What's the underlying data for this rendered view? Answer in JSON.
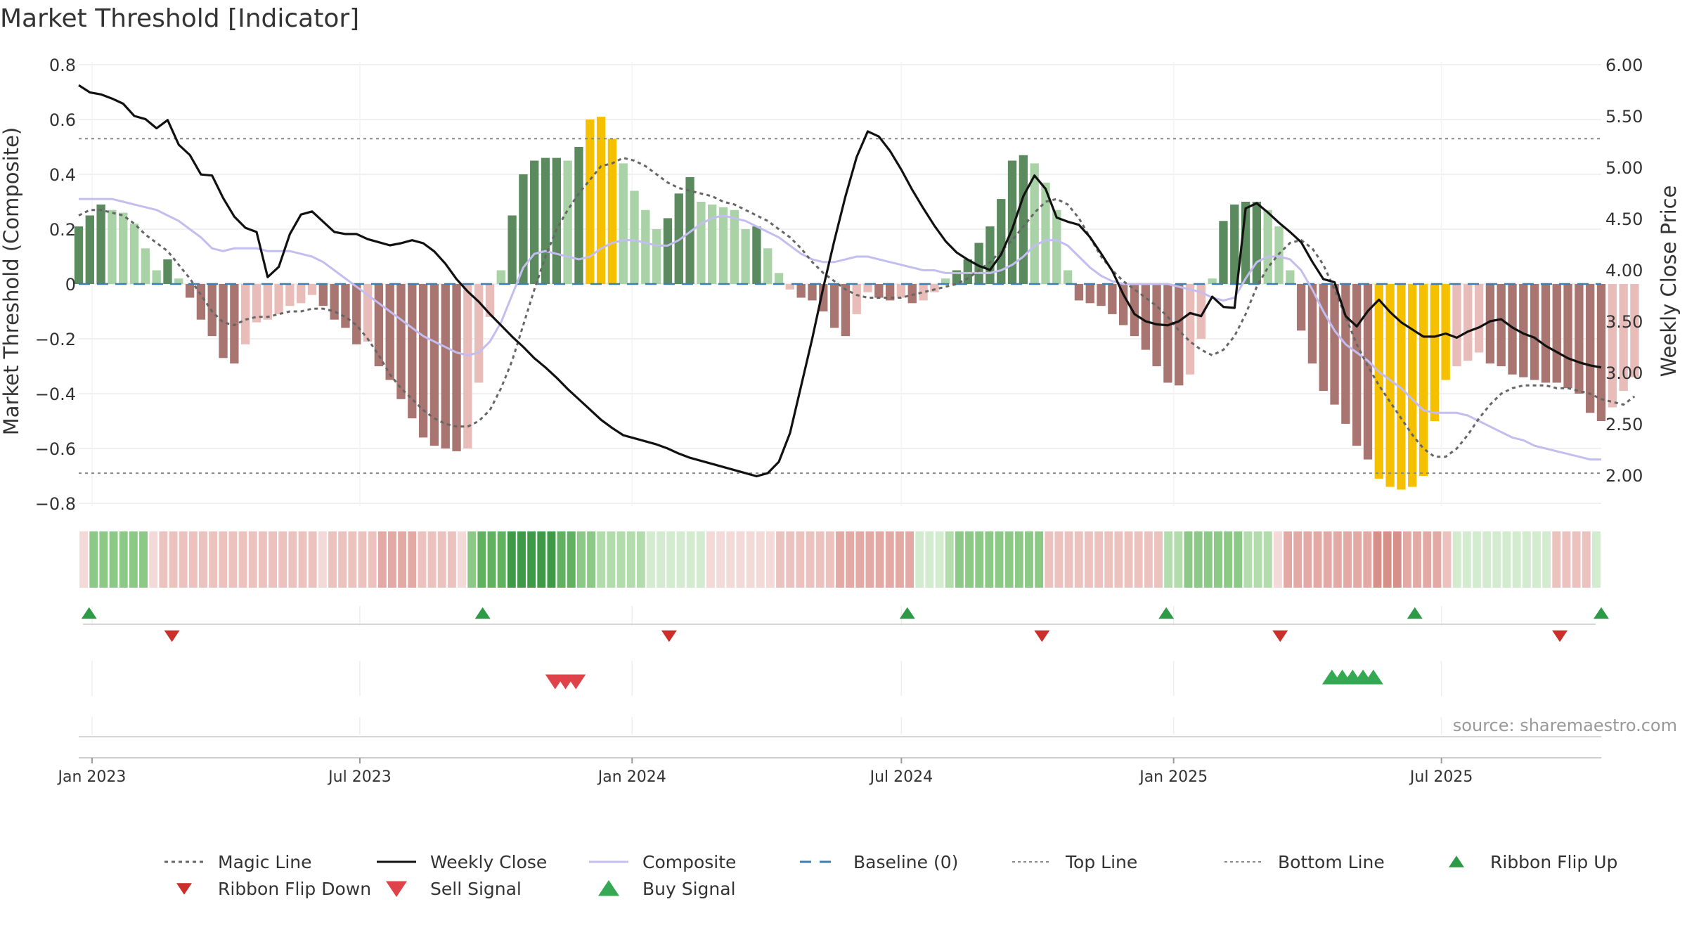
{
  "chart_data": {
    "type": "bar",
    "title": "Market Threshold [Indicator]",
    "ylabel": "Market Threshold (Composite)",
    "y2label": "Weekly Close Price",
    "ylim": [
      -0.85,
      0.85
    ],
    "y2lim": [
      1.72,
      6.0
    ],
    "yticks": [
      0.8,
      0.6,
      0.4,
      0.2,
      0,
      -0.2,
      -0.4,
      -0.6,
      -0.8
    ],
    "ytick_labels": [
      "0.8",
      "0.6",
      "0.4",
      "0.2",
      "0",
      "−0.2",
      "−0.4",
      "−0.6",
      "−0.8"
    ],
    "y2ticks": [
      6.0,
      5.5,
      5.0,
      4.5,
      4.0,
      3.5,
      3.0,
      2.5,
      2.0
    ],
    "y2tick_labels": [
      "6.00",
      "5.50",
      "5.00",
      "4.50",
      "4.00",
      "3.50",
      "3.00",
      "2.50",
      "2.00"
    ],
    "x_start": "2022-12-23",
    "x_end": "2025-10-17",
    "x_ticks": [
      {
        "date": "2023-01-01",
        "label": "Jan 2023"
      },
      {
        "date": "2023-07-01",
        "label": "Jul 2023"
      },
      {
        "date": "2024-01-01",
        "label": "Jan 2024"
      },
      {
        "date": "2024-07-01",
        "label": "Jul 2024"
      },
      {
        "date": "2025-01-01",
        "label": "Jan 2025"
      },
      {
        "date": "2025-07-01",
        "label": "Jul 2025"
      }
    ],
    "top_line": 0.53,
    "bottom_line": -0.69,
    "grid": true,
    "legend_position": "bottom",
    "bar_colors": {
      "pos_dark": "#5b8a5e",
      "pos_light": "#a9d3a6",
      "neg_dark": "#a97570",
      "neg_light": "#e8bcb9",
      "extreme": "#f5c000"
    },
    "ribbon_colors": {
      "bull": [
        "#d3eccf",
        "#b2dcac",
        "#8cc886",
        "#62b161",
        "#3e9a46"
      ],
      "bear": [
        "#f3d9d7",
        "#ecc2bf",
        "#e3a9a5",
        "#d78f8a",
        "#c9716b"
      ]
    },
    "weeks": {
      "composite": [
        0.31,
        0.31,
        0.31,
        0.31,
        0.3,
        0.29,
        0.28,
        0.27,
        0.25,
        0.23,
        0.2,
        0.17,
        0.13,
        0.12,
        0.13,
        0.13,
        0.13,
        0.12,
        0.12,
        0.12,
        0.11,
        0.1,
        0.08,
        0.05,
        0.02,
        -0.01,
        -0.04,
        -0.07,
        -0.1,
        -0.13,
        -0.16,
        -0.19,
        -0.21,
        -0.23,
        -0.25,
        -0.26,
        -0.25,
        -0.21,
        -0.14,
        -0.04,
        0.06,
        0.11,
        0.12,
        0.11,
        0.1,
        0.09,
        0.1,
        0.13,
        0.15,
        0.16,
        0.16,
        0.15,
        0.14,
        0.14,
        0.16,
        0.19,
        0.22,
        0.24,
        0.25,
        0.24,
        0.23,
        0.21,
        0.19,
        0.17,
        0.14,
        0.11,
        0.09,
        0.08,
        0.08,
        0.09,
        0.1,
        0.1,
        0.09,
        0.08,
        0.07,
        0.06,
        0.05,
        0.05,
        0.04,
        0.04,
        0.04,
        0.04,
        0.04,
        0.05,
        0.07,
        0.1,
        0.14,
        0.16,
        0.16,
        0.14,
        0.1,
        0.06,
        0.03,
        0.01,
        0.0,
        0.0,
        0.0,
        0.0,
        0.0,
        -0.01,
        -0.02,
        -0.03,
        -0.05,
        -0.06,
        -0.05,
        0.02,
        0.08,
        0.1,
        0.1,
        0.09,
        0.05,
        -0.02,
        -0.1,
        -0.17,
        -0.22,
        -0.25,
        -0.28,
        -0.32,
        -0.35,
        -0.38,
        -0.42,
        -0.46,
        -0.47,
        -0.47,
        -0.47,
        -0.48,
        -0.5,
        -0.52,
        -0.54,
        -0.56,
        -0.57,
        -0.59,
        -0.6,
        -0.61,
        -0.62,
        -0.63,
        -0.64,
        -0.64
      ],
      "close": [
        5.8,
        5.73,
        5.71,
        5.67,
        5.62,
        5.5,
        5.47,
        5.38,
        5.46,
        5.22,
        5.12,
        4.93,
        4.92,
        4.7,
        4.52,
        4.41,
        4.37,
        3.93,
        4.03,
        4.35,
        4.54,
        4.57,
        4.47,
        4.37,
        4.35,
        4.35,
        4.3,
        4.27,
        4.24,
        4.26,
        4.29,
        4.26,
        4.18,
        4.06,
        3.91,
        3.79,
        3.69,
        3.57,
        3.46,
        3.35,
        3.25,
        3.14,
        3.05,
        2.95,
        2.84,
        2.74,
        2.64,
        2.54,
        2.46,
        2.39,
        2.36,
        2.33,
        2.3,
        2.26,
        2.21,
        2.17,
        2.14,
        2.11,
        2.08,
        2.05,
        2.02,
        1.99,
        2.02,
        2.13,
        2.41,
        2.87,
        3.33,
        3.83,
        4.29,
        4.72,
        5.1,
        5.35,
        5.3,
        5.16,
        4.98,
        4.78,
        4.6,
        4.43,
        4.28,
        4.17,
        4.1,
        4.04,
        4.0,
        4.15,
        4.4,
        4.72,
        4.92,
        4.79,
        4.51,
        4.47,
        4.44,
        4.32,
        4.16,
        3.99,
        3.76,
        3.57,
        3.5,
        3.47,
        3.46,
        3.5,
        3.58,
        3.55,
        3.74,
        3.64,
        3.63,
        4.6,
        4.65,
        4.56,
        4.46,
        4.37,
        4.27,
        4.08,
        3.91,
        3.88,
        3.55,
        3.45,
        3.6,
        3.71,
        3.59,
        3.49,
        3.42,
        3.35,
        3.35,
        3.38,
        3.34,
        3.4,
        3.44,
        3.5,
        3.52,
        3.44,
        3.38,
        3.34,
        3.26,
        3.2,
        3.14,
        3.1,
        3.07,
        3.05
      ],
      "magic": [
        0.25,
        0.27,
        0.27,
        0.26,
        0.25,
        0.22,
        0.18,
        0.15,
        0.12,
        0.07,
        0.02,
        -0.04,
        -0.1,
        -0.14,
        -0.15,
        -0.13,
        -0.12,
        -0.12,
        -0.11,
        -0.1,
        -0.1,
        -0.09,
        -0.09,
        -0.1,
        -0.12,
        -0.15,
        -0.2,
        -0.26,
        -0.33,
        -0.38,
        -0.42,
        -0.46,
        -0.49,
        -0.51,
        -0.52,
        -0.52,
        -0.5,
        -0.46,
        -0.38,
        -0.28,
        -0.15,
        -0.02,
        0.1,
        0.2,
        0.27,
        0.33,
        0.38,
        0.43,
        0.44,
        0.46,
        0.45,
        0.43,
        0.4,
        0.37,
        0.35,
        0.34,
        0.33,
        0.32,
        0.3,
        0.29,
        0.27,
        0.25,
        0.23,
        0.2,
        0.17,
        0.13,
        0.08,
        0.04,
        0.01,
        -0.02,
        -0.04,
        -0.05,
        -0.05,
        -0.05,
        -0.05,
        -0.04,
        -0.03,
        -0.02,
        -0.01,
        0.0,
        0.02,
        0.05,
        0.08,
        0.12,
        0.16,
        0.21,
        0.26,
        0.3,
        0.31,
        0.29,
        0.24,
        0.17,
        0.1,
        0.05,
        0.01,
        -0.02,
        -0.05,
        -0.08,
        -0.12,
        -0.17,
        -0.21,
        -0.24,
        -0.26,
        -0.24,
        -0.19,
        -0.11,
        -0.01,
        0.06,
        0.11,
        0.15,
        0.16,
        0.13,
        0.07,
        -0.02,
        -0.12,
        -0.22,
        -0.3,
        -0.37,
        -0.43,
        -0.49,
        -0.55,
        -0.6,
        -0.63,
        -0.63,
        -0.6,
        -0.55,
        -0.49,
        -0.44,
        -0.4,
        -0.38,
        -0.37,
        -0.37,
        -0.37,
        -0.38,
        -0.38,
        -0.39,
        -0.4,
        -0.42,
        -0.43,
        -0.44,
        -0.41
      ],
      "bars": [
        0.21,
        0.25,
        0.29,
        0.27,
        0.26,
        0.22,
        0.13,
        0.05,
        0.09,
        0.02,
        -0.05,
        -0.13,
        -0.19,
        -0.27,
        -0.29,
        -0.22,
        -0.14,
        -0.13,
        -0.11,
        -0.08,
        -0.07,
        -0.04,
        -0.08,
        -0.13,
        -0.16,
        -0.22,
        -0.21,
        -0.3,
        -0.35,
        -0.42,
        -0.49,
        -0.56,
        -0.59,
        -0.6,
        -0.61,
        -0.6,
        -0.36,
        -0.12,
        0.05,
        0.25,
        0.4,
        0.45,
        0.46,
        0.46,
        0.45,
        0.5,
        0.6,
        0.61,
        0.53,
        0.44,
        0.34,
        0.27,
        0.2,
        0.24,
        0.33,
        0.39,
        0.3,
        0.29,
        0.28,
        0.27,
        0.2,
        0.21,
        0.13,
        0.04,
        -0.02,
        -0.05,
        -0.06,
        -0.1,
        -0.16,
        -0.19,
        -0.11,
        -0.03,
        -0.05,
        -0.06,
        -0.05,
        -0.07,
        -0.06,
        -0.03,
        0.02,
        0.05,
        0.09,
        0.15,
        0.21,
        0.31,
        0.45,
        0.47,
        0.44,
        0.37,
        0.27,
        0.05,
        -0.06,
        -0.07,
        -0.08,
        -0.11,
        -0.15,
        -0.19,
        -0.24,
        -0.3,
        -0.36,
        -0.37,
        -0.33,
        -0.2,
        0.02,
        0.23,
        0.29,
        0.3,
        0.3,
        0.27,
        0.21,
        0.05,
        -0.17,
        -0.29,
        -0.39,
        -0.44,
        -0.51,
        -0.59,
        -0.64,
        -0.71,
        -0.74,
        -0.75,
        -0.74,
        -0.7,
        -0.5,
        -0.35,
        -0.3,
        -0.28,
        -0.25,
        -0.29,
        -0.3,
        -0.33,
        -0.34,
        -0.35,
        -0.36,
        -0.36,
        -0.38,
        -0.4,
        -0.47,
        -0.5,
        -0.45,
        -0.39,
        -0.34
      ],
      "extreme_indices": [
        46,
        47,
        48,
        117,
        118,
        119,
        120,
        121,
        122,
        123
      ],
      "ribbon": [
        -1,
        3,
        3,
        3,
        3,
        3,
        3,
        -1,
        -2,
        -2,
        -2,
        -2,
        -2,
        -2,
        -2,
        -2,
        -2,
        -2,
        -2,
        -2,
        -2,
        -2,
        -2,
        -2,
        -1,
        -2,
        -2,
        -2,
        -2,
        -2,
        -3,
        -3,
        -3,
        -3,
        -2,
        -2,
        -2,
        -2,
        -1,
        3,
        4,
        4,
        4,
        5,
        5,
        5,
        5,
        5,
        4,
        4,
        3,
        3,
        2,
        2,
        2,
        2,
        2,
        1,
        1,
        1,
        1,
        1,
        1,
        -1,
        -1,
        -1,
        -1,
        -1,
        -1,
        -1,
        -2,
        -2,
        -2,
        -2,
        -2,
        -2,
        -3,
        -3,
        -3,
        -3,
        -3,
        -3,
        -3,
        -3,
        1,
        1,
        1,
        2,
        3,
        3,
        3,
        3,
        3,
        3,
        3,
        3,
        3,
        -2,
        -2,
        -2,
        -2,
        -2,
        -2,
        -2,
        -2,
        -2,
        -2,
        -2,
        -2,
        2,
        2,
        3,
        3,
        3,
        3,
        3,
        3,
        2,
        2,
        2,
        -1,
        -3,
        -3,
        -3,
        -3,
        -3,
        -3,
        -3,
        -3,
        -3,
        -4,
        -4,
        -4,
        -3,
        -3,
        -3,
        -3,
        -2,
        1,
        1,
        1,
        1,
        1,
        1,
        1,
        1,
        1,
        1,
        -2,
        -2,
        -2,
        -2,
        1
      ]
    },
    "events": {
      "ribbon_flip_up": [
        "2022-12-30",
        "2023-09-22",
        "2024-07-05",
        "2024-12-27",
        "2025-06-13",
        "2025-10-17"
      ],
      "ribbon_flip_down": [
        "2023-02-24",
        "2024-01-26",
        "2024-10-04",
        "2025-03-14",
        "2025-09-19"
      ],
      "sell_signal": [
        "2023-11-10",
        "2023-11-17",
        "2023-11-24"
      ],
      "buy_signal": [
        "2025-04-18",
        "2025-04-25",
        "2025-05-02",
        "2025-05-09",
        "2025-05-16"
      ]
    },
    "legend": [
      {
        "label": "Magic Line",
        "kind": "dotted",
        "color": "#666666"
      },
      {
        "label": "Weekly Close",
        "kind": "solid",
        "color": "#111111"
      },
      {
        "label": "Composite",
        "kind": "solid",
        "color": "#c3bdf0"
      },
      {
        "label": "Baseline (0)",
        "kind": "dashed",
        "color": "#3d7fb0"
      },
      {
        "label": "Top Line",
        "kind": "fine-dotted",
        "color": "#888888"
      },
      {
        "label": "Bottom Line",
        "kind": "fine-dotted",
        "color": "#888888"
      },
      {
        "label": "Ribbon Flip Up",
        "kind": "tri-up",
        "color": "#2e9a48"
      },
      {
        "label": "Ribbon Flip Down",
        "kind": "tri-down",
        "color": "#c9302c"
      },
      {
        "label": "Sell Signal",
        "kind": "tri-down-big",
        "color": "#e0424a"
      },
      {
        "label": "Buy Signal",
        "kind": "tri-up-big",
        "color": "#34a853"
      }
    ],
    "source": "source: sharemaestro.com"
  }
}
